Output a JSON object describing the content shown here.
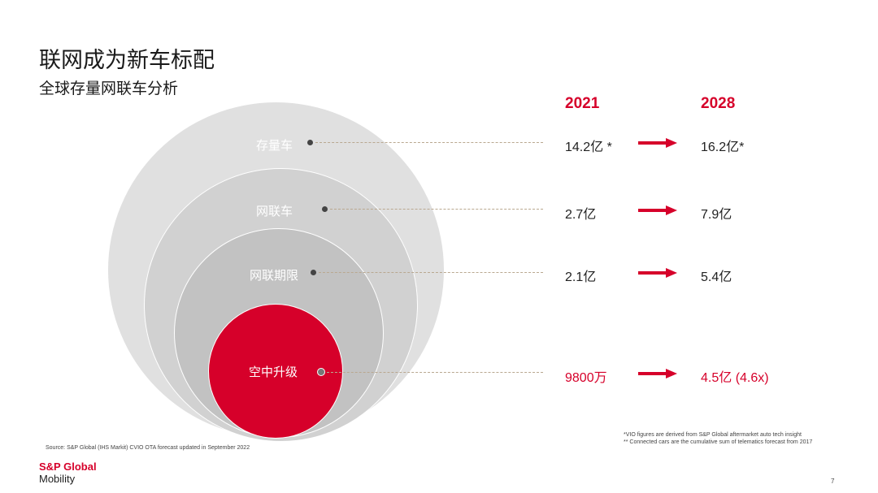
{
  "header": {
    "title": "联网成为新车标配",
    "subtitle": "全球存量网联车分析"
  },
  "years": {
    "from": "2021",
    "to": "2028"
  },
  "rows": [
    {
      "label": "存量车",
      "from": "14.2亿 *",
      "to": "16.2亿*",
      "highlight": false
    },
    {
      "label": "网联车",
      "from": "2.7亿",
      "to": "7.9亿",
      "highlight": false
    },
    {
      "label": "网联期限",
      "from": "2.1亿",
      "to": "5.4亿",
      "highlight": false
    },
    {
      "label": "空中升级",
      "from": "9800万",
      "to": "4.5亿 (4.6x)",
      "highlight": true
    }
  ],
  "footer": {
    "source": "Source: S&P Global (IHS Markit) CVIO OTA forecast updated in September 2022",
    "note1": "*VIO figures are derived from S&P Global aftermarket auto tech insight",
    "note2": "** Connected cars are the cumulative sum of telematics forecast from 2017",
    "logo_line1": "S&P Global",
    "logo_line2": "Mobility",
    "page": "7"
  },
  "colors": {
    "accent": "#d6002a",
    "leader": "#b9a890"
  },
  "icons": [
    "arrow-right-icon"
  ]
}
